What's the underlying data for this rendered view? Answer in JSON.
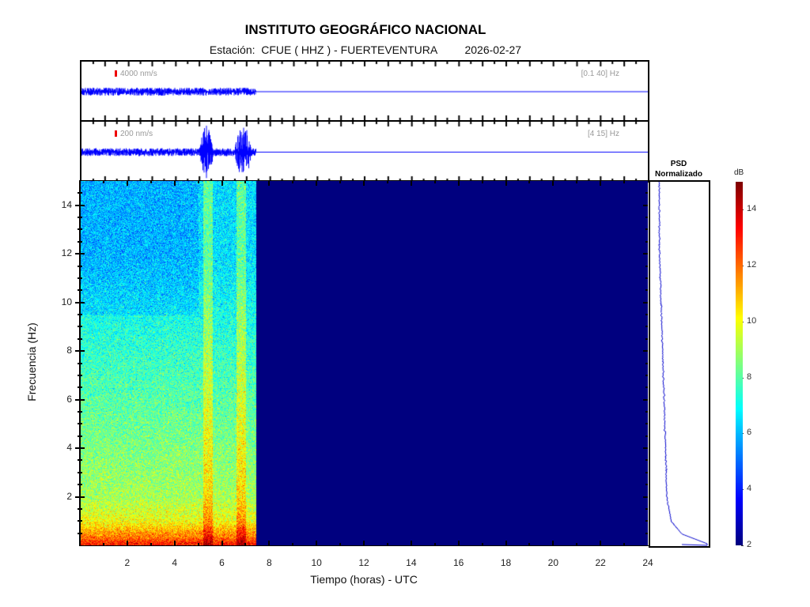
{
  "header": {
    "title": "INSTITUTO GEOGRÁFICO NACIONAL",
    "subtitle": "Estación:  CFUE ( HHZ ) - FUERTEVENTURA         2026-02-27"
  },
  "traces": [
    {
      "amplitude_label": "4000 nm/s",
      "band_label": "[0.1 40] Hz",
      "color": "#0000ff"
    },
    {
      "amplitude_label": "200 nm/s",
      "band_label": "[4 15] Hz",
      "color": "#0000ff"
    }
  ],
  "psd": {
    "title_line1": "PSD",
    "title_line2": "Normalizado"
  },
  "colorbar": {
    "label": "dB"
  },
  "chart_data": {
    "type": "heatmap",
    "title": "INSTITUTO GEOGRÁFICO NACIONAL",
    "xlabel": "Tiempo (horas) - UTC",
    "ylabel": "Frecuencia  (Hz)",
    "xlim": [
      0,
      24
    ],
    "ylim": [
      0,
      15
    ],
    "xticks": [
      2,
      4,
      6,
      8,
      10,
      12,
      14,
      16,
      18,
      20,
      22,
      24
    ],
    "yticks": [
      2,
      4,
      6,
      8,
      10,
      12,
      14
    ],
    "clim": [
      2,
      15
    ],
    "cticks": [
      2,
      4,
      6,
      8,
      10,
      12,
      14
    ],
    "colormap": "jet",
    "data_end_hour": 7.45,
    "events_hours": [
      [
        5.2,
        5.6
      ],
      [
        6.6,
        7.0
      ]
    ],
    "typical_db_by_freq": {
      "freqs": [
        0.1,
        0.3,
        1,
        2,
        4,
        8,
        12,
        15
      ],
      "db": [
        13,
        12,
        10,
        9,
        8.5,
        7.5,
        6.5,
        6.5
      ]
    },
    "psd_normalized_profile": {
      "freqs": [
        0.1,
        0.5,
        1,
        2,
        4,
        8,
        12,
        15
      ],
      "values": [
        1.0,
        0.5,
        0.3,
        0.2,
        0.18,
        0.12,
        0.06,
        0.05
      ]
    }
  }
}
